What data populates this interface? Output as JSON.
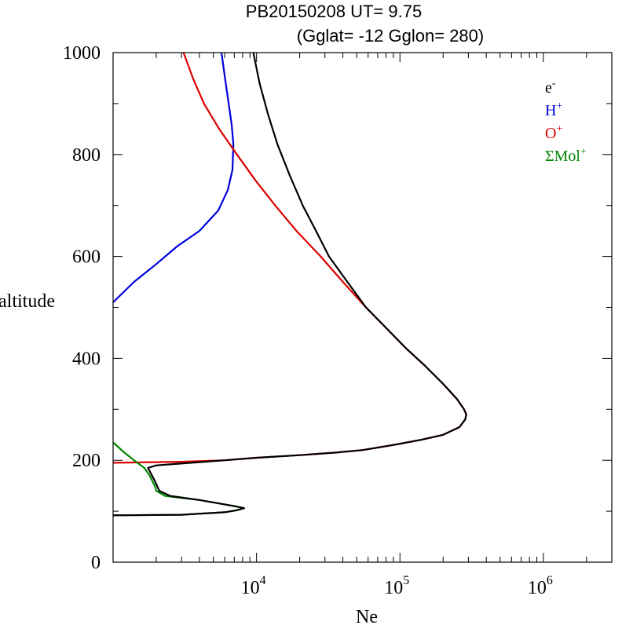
{
  "chart_data": {
    "type": "line",
    "title": "PB20150208   UT=  9.75",
    "subtitle": "(Gglat= -12   Gglon=  280)",
    "xlabel": "Ne",
    "ylabel": "altitude",
    "x_scale": "log",
    "xlim": [
      1000,
      3000000
    ],
    "ylim": [
      0,
      1000
    ],
    "x_ticks": [
      {
        "value": 10000,
        "base": "10",
        "exp": "4"
      },
      {
        "value": 100000,
        "base": "10",
        "exp": "5"
      },
      {
        "value": 1000000,
        "base": "10",
        "exp": "6"
      }
    ],
    "y_ticks": [
      0,
      200,
      400,
      600,
      800,
      1000
    ],
    "grid": false,
    "legend_position": "top-right",
    "series": [
      {
        "name": "e-",
        "label_base": "e",
        "label_sup": "-",
        "color": "#000000",
        "points": [
          [
            1000,
            92
          ],
          [
            3000,
            93
          ],
          [
            6000,
            98
          ],
          [
            7300,
            102
          ],
          [
            8200,
            106
          ],
          [
            7000,
            110
          ],
          [
            4000,
            122
          ],
          [
            2500,
            130
          ],
          [
            2100,
            140
          ],
          [
            1950,
            160
          ],
          [
            1750,
            185
          ],
          [
            2000,
            190
          ],
          [
            2500,
            192
          ],
          [
            3500,
            195
          ],
          [
            6000,
            200
          ],
          [
            10000,
            205
          ],
          [
            20000,
            210
          ],
          [
            35000,
            215
          ],
          [
            55000,
            220
          ],
          [
            90000,
            230
          ],
          [
            140000,
            240
          ],
          [
            200000,
            250
          ],
          [
            260000,
            265
          ],
          [
            285000,
            280
          ],
          [
            290000,
            290
          ],
          [
            280000,
            300
          ],
          [
            250000,
            320
          ],
          [
            200000,
            350
          ],
          [
            150000,
            385
          ],
          [
            110000,
            420
          ],
          [
            80000,
            460
          ],
          [
            58000,
            500
          ],
          [
            43000,
            550
          ],
          [
            32000,
            600
          ],
          [
            26000,
            650
          ],
          [
            21000,
            700
          ],
          [
            17000,
            760
          ],
          [
            14000,
            820
          ],
          [
            12000,
            880
          ],
          [
            10500,
            940
          ],
          [
            9500,
            1000
          ]
        ]
      },
      {
        "name": "H+",
        "label_base": "H",
        "label_sup": "+",
        "color": "#0000dd",
        "points": [
          [
            1000,
            510
          ],
          [
            1400,
            550
          ],
          [
            2000,
            585
          ],
          [
            2800,
            620
          ],
          [
            4000,
            650
          ],
          [
            5400,
            690
          ],
          [
            6300,
            730
          ],
          [
            6800,
            770
          ],
          [
            6900,
            820
          ],
          [
            6700,
            860
          ],
          [
            6100,
            940
          ],
          [
            5700,
            1000
          ]
        ]
      },
      {
        "name": "O+",
        "label_base": "O",
        "label_sup": "+",
        "color": "#dd0000",
        "points": [
          [
            1000,
            195
          ],
          [
            3000,
            197
          ],
          [
            6000,
            200
          ],
          [
            10000,
            205
          ],
          [
            20000,
            210
          ],
          [
            35000,
            215
          ],
          [
            55000,
            220
          ],
          [
            90000,
            230
          ],
          [
            140000,
            240
          ],
          [
            200000,
            250
          ],
          [
            260000,
            265
          ],
          [
            285000,
            280
          ],
          [
            290000,
            290
          ],
          [
            280000,
            300
          ],
          [
            250000,
            320
          ],
          [
            200000,
            350
          ],
          [
            150000,
            385
          ],
          [
            110000,
            420
          ],
          [
            80000,
            460
          ],
          [
            58000,
            500
          ],
          [
            40000,
            550
          ],
          [
            28000,
            600
          ],
          [
            19000,
            650
          ],
          [
            13500,
            700
          ],
          [
            9800,
            750
          ],
          [
            7300,
            800
          ],
          [
            5500,
            850
          ],
          [
            4300,
            900
          ],
          [
            3600,
            950
          ],
          [
            3100,
            1000
          ]
        ]
      },
      {
        "name": "ΣMol+",
        "label_base": "ΣMol",
        "label_sup": "+",
        "color": "#008800",
        "points": [
          [
            1000,
            235
          ],
          [
            1200,
            215
          ],
          [
            1400,
            200
          ],
          [
            1650,
            185
          ],
          [
            1800,
            170
          ],
          [
            1950,
            150
          ],
          [
            2000,
            140
          ],
          [
            2300,
            130
          ],
          [
            4000,
            122
          ],
          [
            7000,
            110
          ],
          [
            8200,
            106
          ],
          [
            7300,
            102
          ],
          [
            6000,
            98
          ],
          [
            3000,
            93
          ],
          [
            1000,
            92
          ]
        ]
      }
    ]
  }
}
